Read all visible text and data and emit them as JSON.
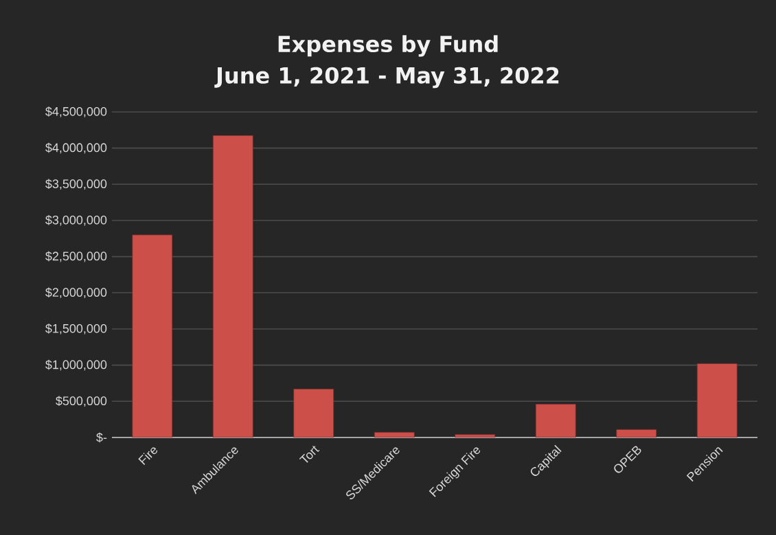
{
  "chart_data": {
    "type": "bar",
    "title": "Expenses by Fund",
    "subtitle": "June 1, 2021 - May 31, 2022",
    "categories": [
      "Fire",
      "Ambulance",
      "Tort",
      "SS/Medicare",
      "Foreign Fire",
      "Capital",
      "OPEB",
      "Pension"
    ],
    "values": [
      2800000,
      4175000,
      670000,
      70000,
      40000,
      460000,
      110000,
      1020000
    ],
    "color": "#cc4f4a",
    "ylim": [
      0,
      4500000
    ],
    "yticks": [
      {
        "value": 0,
        "label": "$-"
      },
      {
        "value": 500000,
        "label": "$500,000"
      },
      {
        "value": 1000000,
        "label": "$1,000,000"
      },
      {
        "value": 1500000,
        "label": "$1,500,000"
      },
      {
        "value": 2000000,
        "label": "$2,000,000"
      },
      {
        "value": 2500000,
        "label": "$2,500,000"
      },
      {
        "value": 3000000,
        "label": "$3,000,000"
      },
      {
        "value": 3500000,
        "label": "$3,500,000"
      },
      {
        "value": 4000000,
        "label": "$4,000,000"
      },
      {
        "value": 4500000,
        "label": "$4,500,000"
      }
    ],
    "grid": "y"
  }
}
